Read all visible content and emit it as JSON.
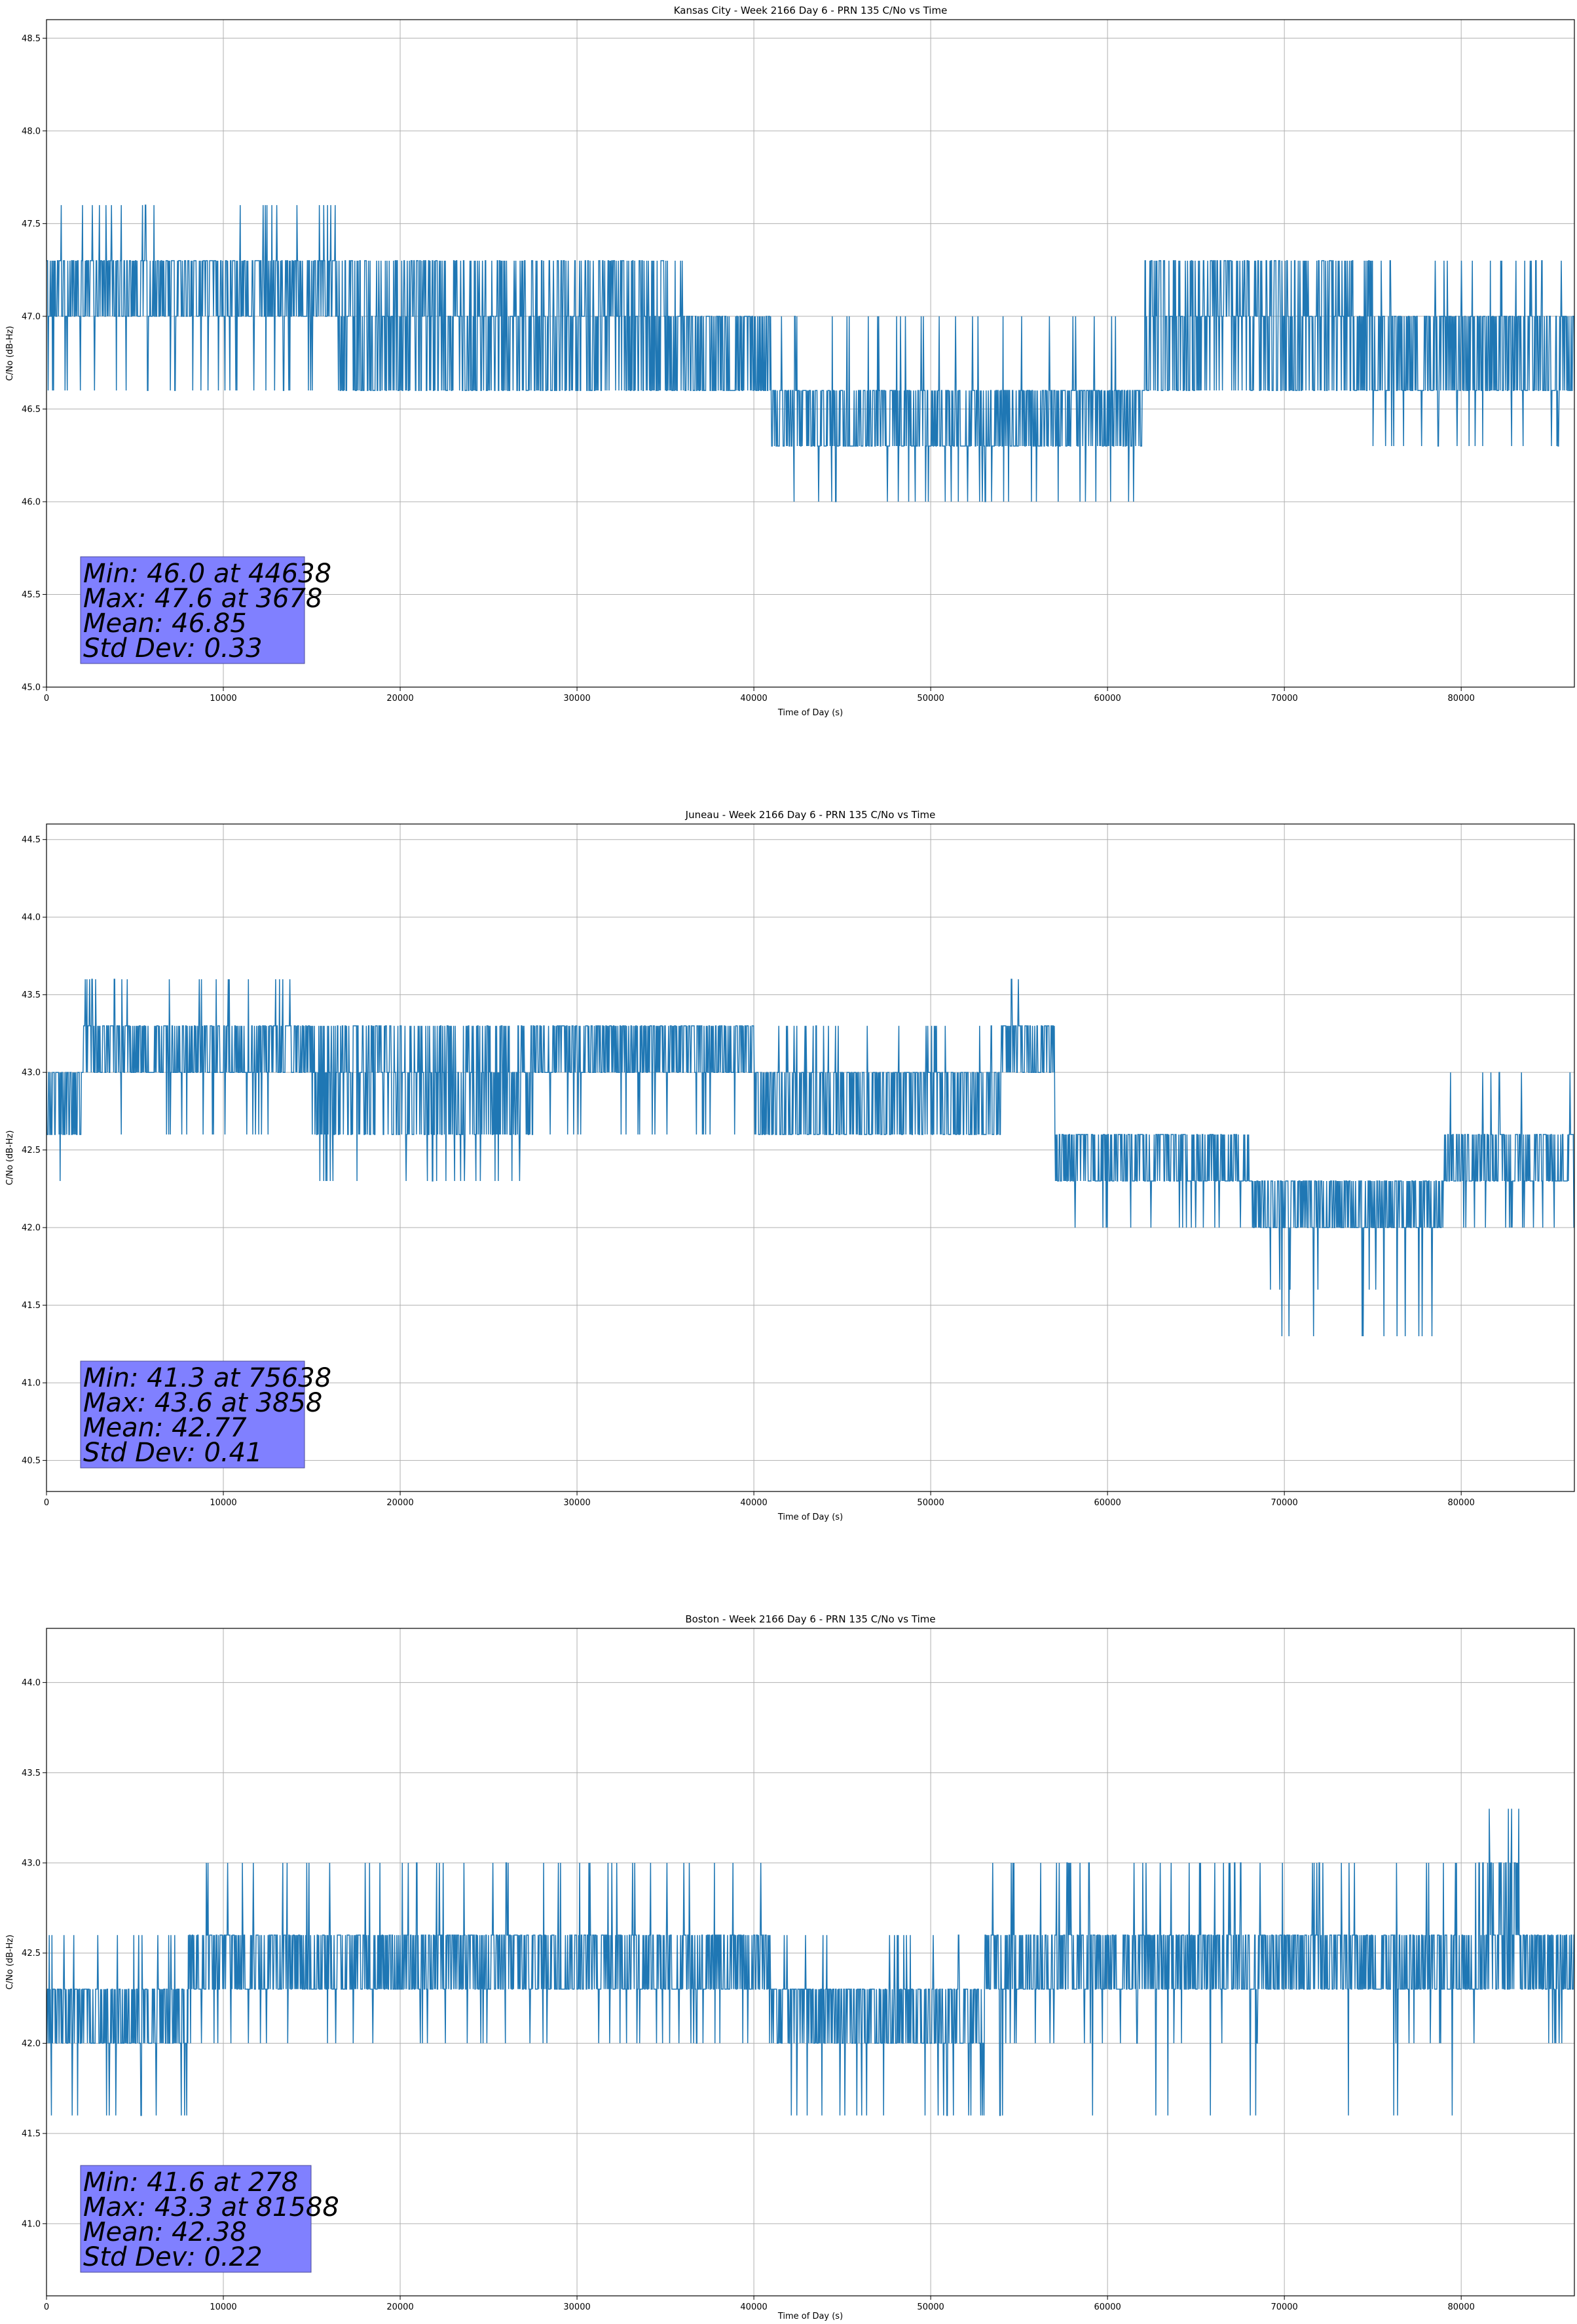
{
  "chart_data": [
    {
      "type": "line",
      "title": "Kansas City - Week 2166 Day 6 - PRN 135 C/No vs Time",
      "xlabel": "Time of Day (s)",
      "ylabel": "C/No (dB-Hz)",
      "xlim": [
        0,
        86400
      ],
      "ylim": [
        45.0,
        48.6
      ],
      "xticks": [
        0,
        10000,
        20000,
        30000,
        40000,
        50000,
        60000,
        70000,
        80000
      ],
      "yticks": [
        45.0,
        45.5,
        46.0,
        46.5,
        47.0,
        47.5,
        48.0,
        48.5
      ],
      "grid": true,
      "line_color": "#1f77b4",
      "stats_box_color": "#8080ff",
      "quantization": 0.3,
      "min": {
        "value": 46.0,
        "x": 44638
      },
      "max": {
        "value": 47.6,
        "x": 3678
      },
      "mean": 46.85,
      "std_dev": 0.33,
      "stats": [
        "Min: 46.0 at 44638",
        "Max: 47.6 at 3678",
        "Mean: 46.85",
        "Std Dev: 0.33"
      ],
      "segments": [
        {
          "x": [
            0,
            16500
          ],
          "levels": [
            47.0,
            47.3
          ],
          "spikes_up": [
            47.6
          ],
          "spikes_down": [
            46.6
          ]
        },
        {
          "x": [
            16500,
            36000
          ],
          "levels": [
            47.0,
            47.3,
            46.6
          ],
          "spikes_down": [
            46.6
          ]
        },
        {
          "x": [
            36000,
            41000
          ],
          "levels": [
            46.6,
            47.0
          ]
        },
        {
          "x": [
            41000,
            62000
          ],
          "levels": [
            46.3,
            46.6
          ],
          "spikes_down": [
            46.0
          ],
          "spikes_up": [
            47.0
          ]
        },
        {
          "x": [
            62000,
            68000
          ],
          "levels": [
            46.6,
            47.0,
            47.3
          ]
        },
        {
          "x": [
            68000,
            75000
          ],
          "levels": [
            47.0,
            47.3,
            46.6
          ]
        },
        {
          "x": [
            75000,
            86400
          ],
          "levels": [
            46.6,
            47.0
          ],
          "spikes_down": [
            46.3
          ],
          "spikes_up": [
            47.3
          ]
        }
      ]
    },
    {
      "type": "line",
      "title": "Juneau - Week 2166 Day 6 - PRN 135 C/No vs Time",
      "xlabel": "Time of Day (s)",
      "ylabel": "C/No (dB-Hz)",
      "xlim": [
        0,
        86400
      ],
      "ylim": [
        40.3,
        44.6
      ],
      "xticks": [
        0,
        10000,
        20000,
        30000,
        40000,
        50000,
        60000,
        70000,
        80000
      ],
      "yticks": [
        40.5,
        41.0,
        41.5,
        42.0,
        42.5,
        43.0,
        43.5,
        44.0,
        44.5
      ],
      "grid": true,
      "line_color": "#1f77b4",
      "stats_box_color": "#8080ff",
      "quantization": 0.3,
      "min": {
        "value": 41.3,
        "x": 75638
      },
      "max": {
        "value": 43.6,
        "x": 3858
      },
      "mean": 42.77,
      "std_dev": 0.41,
      "stats": [
        "Min: 41.3 at 75638",
        "Max: 43.6 at 3858",
        "Mean: 42.77",
        "Std Dev: 0.41"
      ],
      "segments": [
        {
          "x": [
            0,
            2000
          ],
          "levels": [
            42.6,
            43.0
          ],
          "spikes_down": [
            42.3
          ]
        },
        {
          "x": [
            2000,
            15000
          ],
          "levels": [
            43.0,
            43.3
          ],
          "spikes_up": [
            43.6
          ],
          "spikes_down": [
            42.6
          ]
        },
        {
          "x": [
            15000,
            27500
          ],
          "levels": [
            42.6,
            43.0,
            43.3
          ],
          "spikes_down": [
            42.3
          ]
        },
        {
          "x": [
            27500,
            40000
          ],
          "levels": [
            43.0,
            43.3
          ],
          "spikes_down": [
            42.6
          ]
        },
        {
          "x": [
            40000,
            54000
          ],
          "levels": [
            42.6,
            43.0
          ],
          "spikes_up": [
            43.3
          ]
        },
        {
          "x": [
            54000,
            57000
          ],
          "levels": [
            43.0,
            43.3
          ],
          "spikes_up": [
            43.6
          ]
        },
        {
          "x": [
            57000,
            68000
          ],
          "levels": [
            42.3,
            42.6
          ],
          "spikes_down": [
            42.0
          ]
        },
        {
          "x": [
            68000,
            79000
          ],
          "levels": [
            42.0,
            42.3
          ],
          "spikes_down": [
            41.6,
            41.3
          ]
        },
        {
          "x": [
            79000,
            86400
          ],
          "levels": [
            42.3,
            42.6
          ],
          "spikes_up": [
            43.0
          ],
          "spikes_down": [
            42.0
          ]
        }
      ]
    },
    {
      "type": "line",
      "title": "Boston - Week 2166 Day 6 - PRN 135 C/No vs Time",
      "xlabel": "Time of Day (s)",
      "ylabel": "C/No (dB-Hz)",
      "xlim": [
        0,
        86400
      ],
      "ylim": [
        40.6,
        44.3
      ],
      "xticks": [
        0,
        10000,
        20000,
        30000,
        40000,
        50000,
        60000,
        70000,
        80000
      ],
      "yticks": [
        41.0,
        41.5,
        42.0,
        42.5,
        43.0,
        43.5,
        44.0
      ],
      "grid": true,
      "line_color": "#1f77b4",
      "stats_box_color": "#8080ff",
      "quantization": 0.3,
      "min": {
        "value": 41.6,
        "x": 278
      },
      "max": {
        "value": 43.3,
        "x": 81588
      },
      "mean": 42.38,
      "std_dev": 0.22,
      "stats": [
        "Min: 41.6 at 278",
        "Max: 43.3 at 81588",
        "Mean: 42.38",
        "Std Dev: 0.22"
      ],
      "segments": [
        {
          "x": [
            0,
            8000
          ],
          "levels": [
            42.0,
            42.3
          ],
          "spikes_down": [
            41.6
          ],
          "spikes_up": [
            42.6
          ]
        },
        {
          "x": [
            8000,
            41000
          ],
          "levels": [
            42.3,
            42.6
          ],
          "spikes_up": [
            43.0
          ],
          "spikes_down": [
            42.0
          ]
        },
        {
          "x": [
            41000,
            53000
          ],
          "levels": [
            42.0,
            42.3
          ],
          "spikes_down": [
            41.6
          ],
          "spikes_up": [
            42.6
          ]
        },
        {
          "x": [
            53000,
            81000
          ],
          "levels": [
            42.3,
            42.6
          ],
          "spikes_up": [
            43.0
          ],
          "spikes_down": [
            42.0,
            41.6
          ]
        },
        {
          "x": [
            81000,
            83500
          ],
          "levels": [
            42.3,
            42.6,
            43.0
          ],
          "spikes_up": [
            43.3
          ]
        },
        {
          "x": [
            83500,
            86400
          ],
          "levels": [
            42.3,
            42.6
          ],
          "spikes_down": [
            42.0
          ]
        }
      ]
    }
  ]
}
